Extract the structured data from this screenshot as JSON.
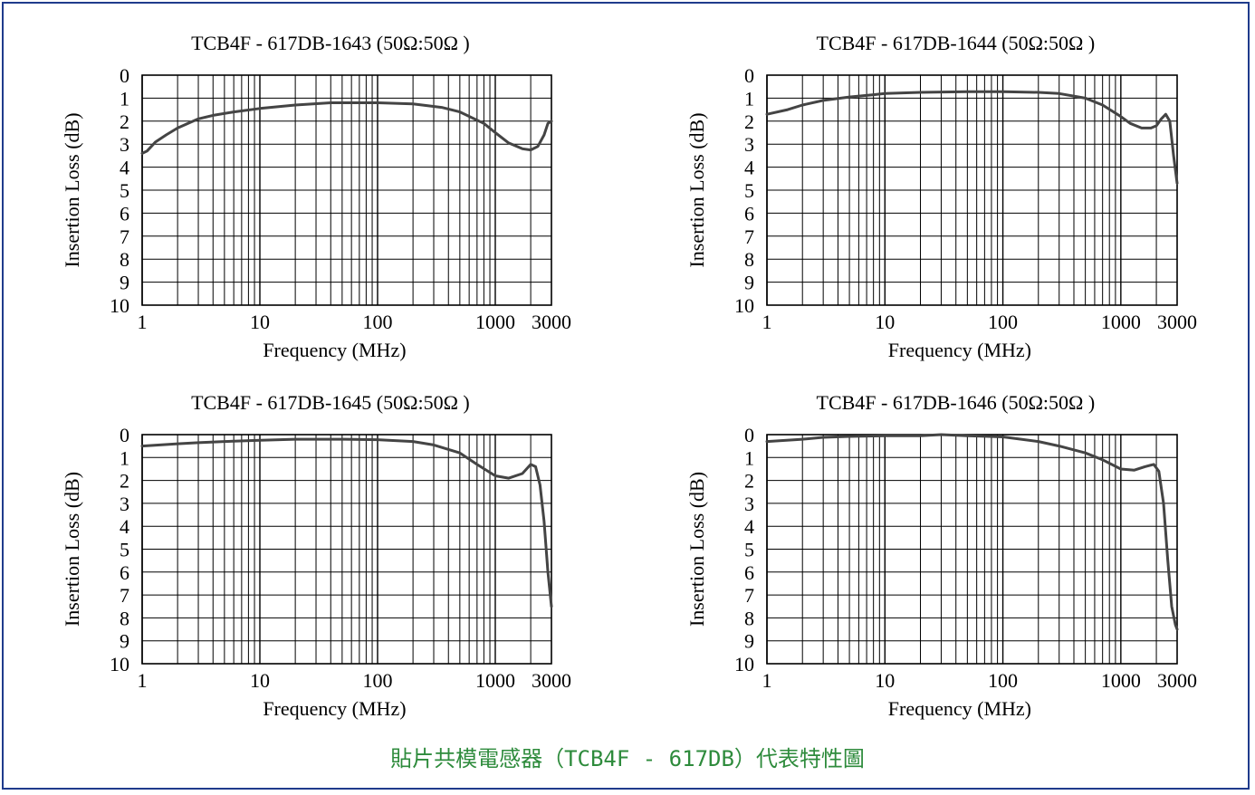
{
  "caption": "貼片共模電感器（TCB4F - 617DB）代表特性圖",
  "colors": {
    "frame": "#1f3b8c",
    "curve": "#444444",
    "caption": "#2e8b3c"
  },
  "chart_data": [
    {
      "type": "line",
      "title": "TCB4F - 617DB-1643 (50Ω:50Ω )",
      "xlabel": "Frequency (MHz)",
      "ylabel": "Insertion Loss (dB)",
      "x_scale": "log",
      "xlim": [
        1,
        3000
      ],
      "ylim": [
        0,
        10
      ],
      "y_inverted": true,
      "grid": true,
      "x_ticks": [
        "1",
        "10",
        "100",
        "1000",
        "3000"
      ],
      "y_ticks": [
        "0",
        "1",
        "2",
        "3",
        "4",
        "5",
        "6",
        "7",
        "8",
        "9",
        "10"
      ],
      "series": [
        {
          "x": [
            1,
            1.1,
            1.3,
            1.6,
            2,
            3,
            4,
            6,
            10,
            20,
            40,
            100,
            200,
            350,
            500,
            800,
            1000,
            1300,
            1700,
            2000,
            2300,
            2600,
            2800,
            3000
          ],
          "y": [
            3.4,
            3.3,
            2.9,
            2.6,
            2.3,
            1.9,
            1.75,
            1.6,
            1.45,
            1.3,
            1.2,
            1.2,
            1.25,
            1.4,
            1.6,
            2.1,
            2.5,
            2.95,
            3.2,
            3.25,
            3.1,
            2.6,
            2.1,
            2.0
          ]
        }
      ]
    },
    {
      "type": "line",
      "title": "TCB4F - 617DB-1644 (50Ω:50Ω )",
      "xlabel": "Frequency (MHz)",
      "ylabel": "Insertion Loss (dB)",
      "x_scale": "log",
      "xlim": [
        1,
        3000
      ],
      "ylim": [
        0,
        10
      ],
      "y_inverted": true,
      "grid": true,
      "x_ticks": [
        "1",
        "10",
        "100",
        "1000",
        "3000"
      ],
      "y_ticks": [
        "0",
        "1",
        "2",
        "3",
        "4",
        "5",
        "6",
        "7",
        "8",
        "9",
        "10"
      ],
      "series": [
        {
          "x": [
            1,
            1.5,
            2,
            3,
            5,
            8,
            10,
            20,
            50,
            100,
            200,
            300,
            500,
            700,
            1000,
            1200,
            1500,
            1800,
            2000,
            2200,
            2400,
            2600,
            2800,
            3000
          ],
          "y": [
            1.7,
            1.5,
            1.3,
            1.1,
            0.95,
            0.85,
            0.8,
            0.75,
            0.72,
            0.72,
            0.75,
            0.8,
            1.0,
            1.3,
            1.8,
            2.1,
            2.3,
            2.3,
            2.2,
            1.9,
            1.7,
            2.0,
            3.5,
            4.7
          ]
        }
      ]
    },
    {
      "type": "line",
      "title": "TCB4F - 617DB-1645 (50Ω:50Ω )",
      "xlabel": "Frequency (MHz)",
      "ylabel": "Insertion Loss (dB)",
      "x_scale": "log",
      "xlim": [
        1,
        3000
      ],
      "ylim": [
        0,
        10
      ],
      "y_inverted": true,
      "grid": true,
      "x_ticks": [
        "1",
        "10",
        "100",
        "1000",
        "3000"
      ],
      "y_ticks": [
        "0",
        "1",
        "2",
        "3",
        "4",
        "5",
        "6",
        "7",
        "8",
        "9",
        "10"
      ],
      "series": [
        {
          "x": [
            1,
            2,
            3,
            5,
            10,
            20,
            50,
            100,
            200,
            300,
            500,
            700,
            1000,
            1300,
            1700,
            2000,
            2200,
            2400,
            2600,
            2800,
            3000
          ],
          "y": [
            0.5,
            0.4,
            0.35,
            0.3,
            0.25,
            0.2,
            0.2,
            0.22,
            0.3,
            0.45,
            0.8,
            1.3,
            1.8,
            1.9,
            1.7,
            1.3,
            1.4,
            2.2,
            3.8,
            6.0,
            7.5
          ]
        }
      ]
    },
    {
      "type": "line",
      "title": "TCB4F - 617DB-1646 (50Ω:50Ω )",
      "xlabel": "Frequency (MHz)",
      "ylabel": "Insertion Loss (dB)",
      "x_scale": "log",
      "xlim": [
        1,
        3000
      ],
      "ylim": [
        0,
        10
      ],
      "y_inverted": true,
      "grid": true,
      "x_ticks": [
        "1",
        "10",
        "100",
        "1000",
        "3000"
      ],
      "y_ticks": [
        "0",
        "1",
        "2",
        "3",
        "4",
        "5",
        "6",
        "7",
        "8",
        "9",
        "10"
      ],
      "series": [
        {
          "x": [
            1,
            2,
            3,
            5,
            10,
            20,
            30,
            50,
            100,
            200,
            300,
            500,
            700,
            1000,
            1300,
            1600,
            1900,
            2100,
            2300,
            2500,
            2700,
            2900,
            3000
          ],
          "y": [
            0.3,
            0.2,
            0.12,
            0.08,
            0.05,
            0.05,
            0.0,
            0.05,
            0.1,
            0.3,
            0.5,
            0.8,
            1.1,
            1.5,
            1.55,
            1.4,
            1.3,
            1.6,
            3.0,
            5.5,
            7.5,
            8.3,
            8.5
          ]
        }
      ]
    }
  ]
}
